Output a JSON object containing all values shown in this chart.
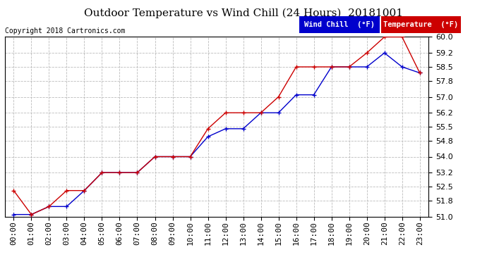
{
  "title": "Outdoor Temperature vs Wind Chill (24 Hours)  20181001",
  "copyright": "Copyright 2018 Cartronics.com",
  "background_color": "#ffffff",
  "plot_background": "#ffffff",
  "grid_color": "#bbbbbb",
  "ylim": [
    51.0,
    60.0
  ],
  "yticks": [
    51.0,
    51.8,
    52.5,
    53.2,
    54.0,
    54.8,
    55.5,
    56.2,
    57.0,
    57.8,
    58.5,
    59.2,
    60.0
  ],
  "hours": [
    0,
    1,
    2,
    3,
    4,
    5,
    6,
    7,
    8,
    9,
    10,
    11,
    12,
    13,
    14,
    15,
    16,
    17,
    18,
    19,
    20,
    21,
    22,
    23
  ],
  "xlabels": [
    "00:00",
    "01:00",
    "02:00",
    "03:00",
    "04:00",
    "05:00",
    "06:00",
    "07:00",
    "08:00",
    "09:00",
    "10:00",
    "11:00",
    "12:00",
    "13:00",
    "14:00",
    "15:00",
    "16:00",
    "17:00",
    "18:00",
    "19:00",
    "20:00",
    "21:00",
    "22:00",
    "23:00"
  ],
  "temperature": [
    52.3,
    51.1,
    51.5,
    52.3,
    52.3,
    53.2,
    53.2,
    53.2,
    54.0,
    54.0,
    54.0,
    55.4,
    56.2,
    56.2,
    56.2,
    57.0,
    58.5,
    58.5,
    58.5,
    58.5,
    59.2,
    60.0,
    60.0,
    58.2
  ],
  "wind_chill": [
    51.1,
    51.1,
    51.5,
    51.5,
    52.3,
    53.2,
    53.2,
    53.2,
    54.0,
    54.0,
    54.0,
    55.0,
    55.4,
    55.4,
    56.2,
    56.2,
    57.1,
    57.1,
    58.5,
    58.5,
    58.5,
    59.2,
    58.5,
    58.2
  ],
  "temp_color": "#cc0000",
  "wind_chill_color": "#0000cc",
  "legend_wind_bg": "#0000cc",
  "legend_temp_bg": "#cc0000",
  "title_fontsize": 11,
  "copyright_fontsize": 7,
  "tick_fontsize": 8,
  "legend_fontsize": 7.5
}
